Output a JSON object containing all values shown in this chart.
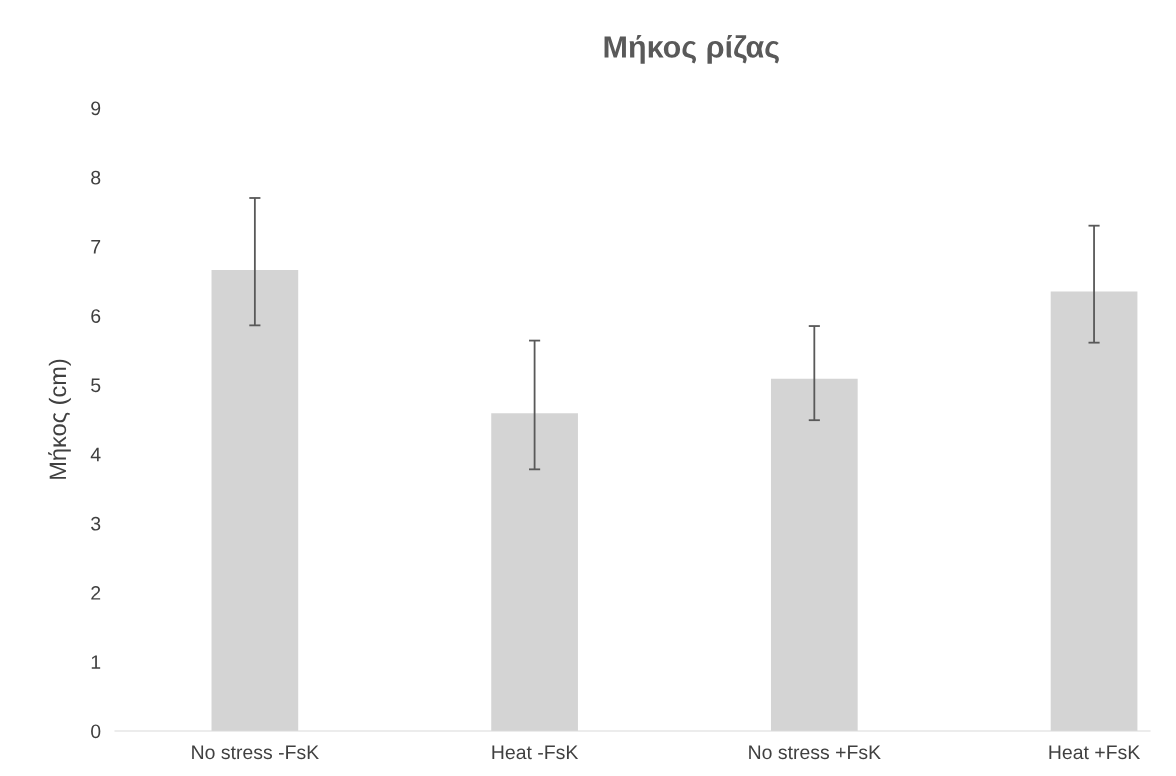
{
  "chart_data": {
    "type": "bar",
    "title": "Μήκος ρίζας",
    "ylabel": "Μήκος (cm)",
    "categories": [
      "No stress -FsK",
      "Heat -FsK",
      "No stress +FsK",
      "Heat +FsK"
    ],
    "values": [
      6.66,
      4.59,
      5.09,
      6.35
    ],
    "errors": [
      [
        5.86,
        7.7
      ],
      [
        3.78,
        5.64
      ],
      [
        4.49,
        5.85
      ],
      [
        5.61,
        7.3
      ]
    ],
    "color": "#d4d4d4",
    "ylim": [
      0,
      9
    ],
    "yticks": [
      0,
      1,
      2,
      3,
      4,
      5,
      6,
      7,
      8,
      9
    ],
    "grid": false
  }
}
